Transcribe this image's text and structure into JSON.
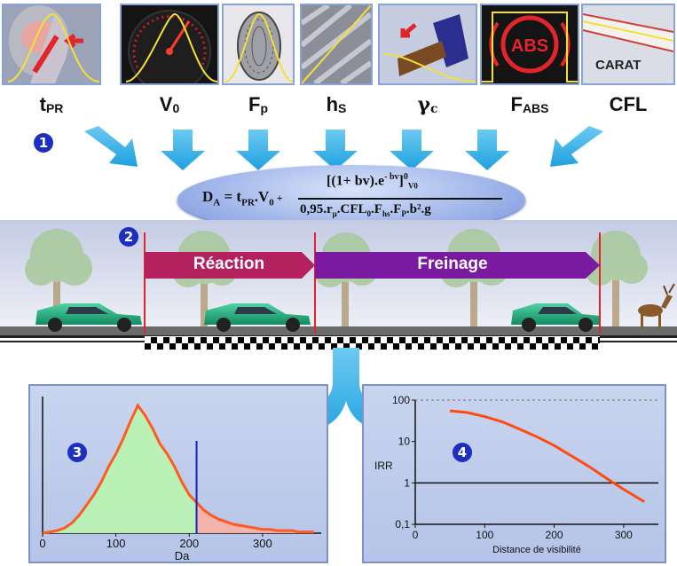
{
  "factors": [
    {
      "id": "tpr",
      "main": "t",
      "sub": "PR",
      "icon": "head-reaction-icon"
    },
    {
      "id": "v0",
      "main": "V",
      "sub": "0",
      "icon": "speedometer-icon"
    },
    {
      "id": "fp",
      "main": "F",
      "sub": "p",
      "icon": "tyre-icon"
    },
    {
      "id": "hs",
      "main": "h",
      "sub": "S",
      "icon": "tread-icon"
    },
    {
      "id": "gc",
      "main": "γ",
      "sub": "c",
      "icon": "brake-pedal-icon"
    },
    {
      "id": "fabs",
      "main": "F",
      "sub": "ABS",
      "icon": "abs-warning-icon"
    },
    {
      "id": "cfl",
      "main": "CFL",
      "sub": "",
      "icon": "carat-road-icon"
    }
  ],
  "card_texts": {
    "abs": "ABS",
    "carat": "CARAT"
  },
  "steps": {
    "one": "1",
    "two": "2",
    "three": "3",
    "four": "4"
  },
  "formula": {
    "lhs": "D",
    "lhs_sub": "A",
    "eq": " = ",
    "t": "t",
    "t_sub": "PR",
    "v": ".V",
    "v_sub": "0",
    "plus": " + ",
    "numerator": "[(1+ bv).e",
    "num_exp": "- bv",
    "num_close": "]",
    "num_sup": "0",
    "num_sub": "V0",
    "denominator": "0,95.r",
    "den_mu": "μ",
    "den_cfl": ".CFL",
    "den_cfl_sub": "0",
    "den_f": ".F",
    "den_f_sub": "hs",
    "den_fp": ".F",
    "den_fp_sub": "P",
    "den_tail": ".b².g"
  },
  "phases": {
    "reaction": "Réaction",
    "braking": "Freinage"
  },
  "chart_data": [
    {
      "type": "area",
      "xlabel": "Da",
      "ylabel": "",
      "xlim": [
        0,
        380
      ],
      "xticks": [
        0,
        100,
        200,
        300
      ],
      "threshold_x": 210,
      "x": [
        0,
        10,
        20,
        30,
        40,
        50,
        60,
        70,
        80,
        90,
        100,
        110,
        120,
        130,
        140,
        150,
        160,
        170,
        180,
        190,
        200,
        210,
        220,
        230,
        240,
        250,
        260,
        270,
        280,
        290,
        300,
        310,
        320,
        330,
        340,
        350,
        360,
        370
      ],
      "y": [
        0,
        1,
        2,
        4,
        8,
        14,
        22,
        30,
        40,
        52,
        62,
        74,
        88,
        100,
        92,
        82,
        70,
        62,
        52,
        40,
        30,
        24,
        18,
        14,
        11,
        9,
        7,
        6,
        5,
        4,
        3,
        3,
        2,
        2,
        2,
        1,
        1,
        1
      ]
    },
    {
      "type": "line",
      "xlabel": "Distance de visibilité",
      "ylabel": "IRR",
      "yscale": "log",
      "xlim": [
        0,
        350
      ],
      "ylim": [
        0.1,
        100
      ],
      "xticks": [
        0,
        100,
        200,
        300
      ],
      "yticks": [
        "0,1",
        "1",
        "10",
        "100"
      ],
      "reference_y": 1,
      "x": [
        50,
        75,
        100,
        125,
        150,
        175,
        200,
        225,
        250,
        275,
        300,
        330
      ],
      "y": [
        55,
        50,
        40,
        30,
        20,
        13,
        8,
        4.5,
        2.5,
        1.3,
        0.7,
        0.35
      ]
    }
  ]
}
